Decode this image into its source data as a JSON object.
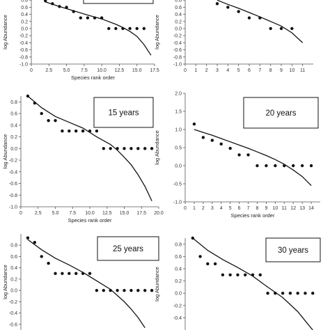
{
  "chart_data": [
    {
      "id": "p1",
      "type": "scatter",
      "panel_label": "",
      "xlabel": "Species rank order",
      "ylabel": "log Abundance",
      "xlim": [
        0,
        17.5
      ],
      "ylim": [
        -1.0,
        1.0
      ],
      "xticks": [
        0,
        2.5,
        5.0,
        7.5,
        10.0,
        12.5,
        15.0,
        17.5
      ],
      "xtick_labels": [
        "0",
        "2.5",
        "5.0",
        "7.5",
        "10.0",
        "12.5",
        "15.0",
        "17.5"
      ],
      "yticks": [
        -1.0,
        -0.8,
        -0.6,
        -0.4,
        -0.2,
        0.0,
        0.2,
        0.4,
        0.6,
        0.8
      ],
      "ytick_labels": [
        "-1.0",
        "-0.8",
        "-0.6",
        "-0.4",
        "-0.2",
        "0.0",
        "0.2",
        "0.4",
        "0.6",
        "0.8"
      ],
      "observed": {
        "x": [
          2,
          3,
          4,
          5,
          6,
          7,
          8,
          9,
          10,
          11,
          12,
          13,
          14,
          15,
          16
        ],
        "y": [
          0.78,
          0.7,
          0.62,
          0.6,
          0.48,
          0.3,
          0.3,
          0.3,
          0.3,
          0.0,
          0.0,
          0.0,
          0.0,
          0.0,
          0.0
        ]
      },
      "expected": {
        "x": [
          2,
          4,
          6,
          8,
          10,
          12,
          13,
          14,
          15,
          16,
          17
        ],
        "y": [
          0.75,
          0.62,
          0.5,
          0.38,
          0.27,
          0.12,
          0.03,
          -0.08,
          -0.22,
          -0.45,
          -0.75
        ]
      }
    },
    {
      "id": "p2",
      "type": "scatter",
      "panel_label": "",
      "xlabel": "",
      "ylabel": "log Abundance",
      "xlim": [
        0,
        12
      ],
      "ylim": [
        -1.0,
        1.0
      ],
      "xticks": [
        0,
        1,
        2,
        3,
        4,
        5,
        6,
        7,
        8,
        9,
        10,
        11
      ],
      "xtick_labels": [
        "0",
        "1",
        "2",
        "3",
        "4",
        "5",
        "6",
        "7",
        "8",
        "9",
        "10",
        "11"
      ],
      "yticks": [
        -1.0,
        -0.8,
        -0.6,
        -0.4,
        -0.2,
        0.0,
        0.2,
        0.4,
        0.6,
        0.8
      ],
      "ytick_labels": [
        "-1.0",
        "-0.8",
        "-0.6",
        "-0.4",
        "-0.2",
        "0.0",
        "0.2",
        "0.4",
        "0.6",
        "0.8"
      ],
      "observed": {
        "x": [
          3,
          4,
          5,
          6,
          7,
          8,
          9,
          10
        ],
        "y": [
          0.7,
          0.6,
          0.48,
          0.3,
          0.3,
          0.0,
          0.0,
          0.0
        ]
      },
      "expected": {
        "x": [
          3,
          4,
          5,
          6,
          7,
          8,
          9,
          10,
          11
        ],
        "y": [
          0.8,
          0.68,
          0.57,
          0.45,
          0.33,
          0.2,
          0.07,
          -0.12,
          -0.4
        ]
      }
    },
    {
      "id": "p3",
      "type": "scatter",
      "panel_label": "15 years",
      "xlabel": "Species rank order",
      "ylabel": "log Abundance",
      "xlim": [
        0,
        20
      ],
      "ylim": [
        -1.0,
        0.9
      ],
      "xticks": [
        0,
        2.5,
        5.0,
        7.5,
        10.0,
        12.5,
        15.0,
        17.5,
        20.0
      ],
      "xtick_labels": [
        "0",
        "2.5",
        "5.0",
        "7.5",
        "10.0",
        "12.5",
        "15.0",
        "17.5",
        "20.0"
      ],
      "yticks": [
        -1.0,
        -0.8,
        -0.6,
        -0.4,
        -0.2,
        0.0,
        0.2,
        0.4,
        0.6,
        0.8
      ],
      "ytick_labels": [
        "-1.0",
        "-0.8",
        "-0.6",
        "-0.4",
        "-0.2",
        "0.0",
        "0.2",
        "0.4",
        "0.6",
        "0.8"
      ],
      "observed": {
        "x": [
          1,
          2,
          3,
          4,
          5,
          6,
          7,
          8,
          9,
          10,
          11,
          12,
          13,
          14,
          15,
          16,
          17,
          18,
          19
        ],
        "y": [
          0.9,
          0.78,
          0.6,
          0.48,
          0.48,
          0.3,
          0.3,
          0.3,
          0.3,
          0.3,
          0.3,
          0.0,
          0.0,
          0.0,
          0.0,
          0.0,
          0.0,
          0.0,
          0.0
        ]
      },
      "expected": {
        "x": [
          1,
          3,
          5,
          7,
          9,
          11,
          13,
          14,
          15,
          16,
          17,
          18,
          19
        ],
        "y": [
          0.9,
          0.7,
          0.55,
          0.45,
          0.35,
          0.2,
          0.07,
          -0.03,
          -0.15,
          -0.28,
          -0.45,
          -0.65,
          -0.9
        ]
      }
    },
    {
      "id": "p4",
      "type": "scatter",
      "panel_label": "20 years",
      "xlabel": "Species rank order",
      "ylabel": "log Abundance",
      "xlim": [
        0,
        15
      ],
      "ylim": [
        -1.0,
        2.0
      ],
      "xticks": [
        0,
        1,
        2,
        3,
        4,
        5,
        6,
        7,
        8,
        9,
        10,
        11,
        12,
        13,
        14
      ],
      "xtick_labels": [
        "0",
        "1",
        "2",
        "3",
        "4",
        "5",
        "6",
        "7",
        "8",
        "9",
        "10",
        "11",
        "12",
        "13",
        "14"
      ],
      "yticks": [
        -1.0,
        -0.5,
        0.0,
        0.5,
        1.0,
        1.5,
        2.0
      ],
      "ytick_labels": [
        "-1.0",
        "-0.5",
        "0.0",
        "0.5",
        "1.0",
        "1.5",
        "2.0"
      ],
      "observed": {
        "x": [
          1,
          2,
          3,
          4,
          5,
          6,
          7,
          8,
          9,
          10,
          11,
          12,
          13,
          14
        ],
        "y": [
          1.15,
          0.78,
          0.7,
          0.6,
          0.48,
          0.3,
          0.3,
          0.0,
          0.0,
          0.0,
          0.0,
          0.0,
          0.0,
          0.0
        ]
      },
      "expected": {
        "x": [
          1,
          2,
          3,
          4,
          5,
          6,
          7,
          8,
          9,
          10,
          11,
          12,
          13,
          14
        ],
        "y": [
          1.0,
          0.92,
          0.84,
          0.75,
          0.66,
          0.57,
          0.48,
          0.38,
          0.28,
          0.17,
          0.04,
          -0.12,
          -0.3,
          -0.55
        ]
      }
    },
    {
      "id": "p5",
      "type": "scatter",
      "panel_label": "25 years",
      "xlabel": "",
      "ylabel": "log Abundance",
      "xlim": [
        0,
        20
      ],
      "ylim": [
        -0.7,
        1.0
      ],
      "xticks": [],
      "xtick_labels": [],
      "yticks": [
        -0.6,
        -0.4,
        -0.2,
        0.0,
        0.2,
        0.4,
        0.6,
        0.8
      ],
      "ytick_labels": [
        "-0.6",
        "-0.4",
        "-0.2",
        "0.0",
        "0.2",
        "0.4",
        "0.6",
        "0.8"
      ],
      "observed": {
        "x": [
          1,
          2,
          3,
          4,
          5,
          6,
          7,
          8,
          9,
          10,
          11,
          12,
          13,
          14,
          15,
          16,
          17,
          18,
          19
        ],
        "y": [
          0.93,
          0.85,
          0.6,
          0.48,
          0.3,
          0.3,
          0.3,
          0.3,
          0.3,
          0.3,
          0.0,
          0.0,
          0.0,
          0.0,
          0.0,
          0.0,
          0.0,
          0.0,
          0.0
        ]
      },
      "expected": {
        "x": [
          1,
          3,
          5,
          7,
          9,
          11,
          13,
          15,
          16,
          17,
          18
        ],
        "y": [
          0.9,
          0.72,
          0.57,
          0.45,
          0.32,
          0.17,
          0.02,
          -0.2,
          -0.33,
          -0.48,
          -0.66
        ]
      }
    },
    {
      "id": "p6",
      "type": "scatter",
      "panel_label": "30 years",
      "xlabel": "",
      "ylabel": "log Abundance",
      "xlim": [
        0,
        18
      ],
      "ylim": [
        -0.6,
        0.9
      ],
      "xticks": [],
      "xtick_labels": [],
      "yticks": [
        -0.4,
        -0.2,
        0.0,
        0.2,
        0.4,
        0.6,
        0.8
      ],
      "ytick_labels": [
        "-0.4",
        "-0.2",
        "0.0",
        "0.2",
        "0.4",
        "0.6",
        "0.8"
      ],
      "observed": {
        "x": [
          1,
          2,
          3,
          4,
          5,
          6,
          7,
          8,
          9,
          10,
          11,
          12,
          13,
          14,
          15,
          16,
          17
        ],
        "y": [
          0.9,
          0.6,
          0.48,
          0.48,
          0.3,
          0.3,
          0.3,
          0.3,
          0.3,
          0.3,
          0.0,
          0.0,
          0.0,
          0.0,
          0.0,
          0.0,
          0.0
        ]
      },
      "expected": {
        "x": [
          1,
          3,
          5,
          7,
          9,
          11,
          13,
          15,
          16,
          17
        ],
        "y": [
          0.9,
          0.7,
          0.55,
          0.42,
          0.28,
          0.1,
          -0.07,
          -0.3,
          -0.45,
          -0.6
        ]
      }
    }
  ]
}
